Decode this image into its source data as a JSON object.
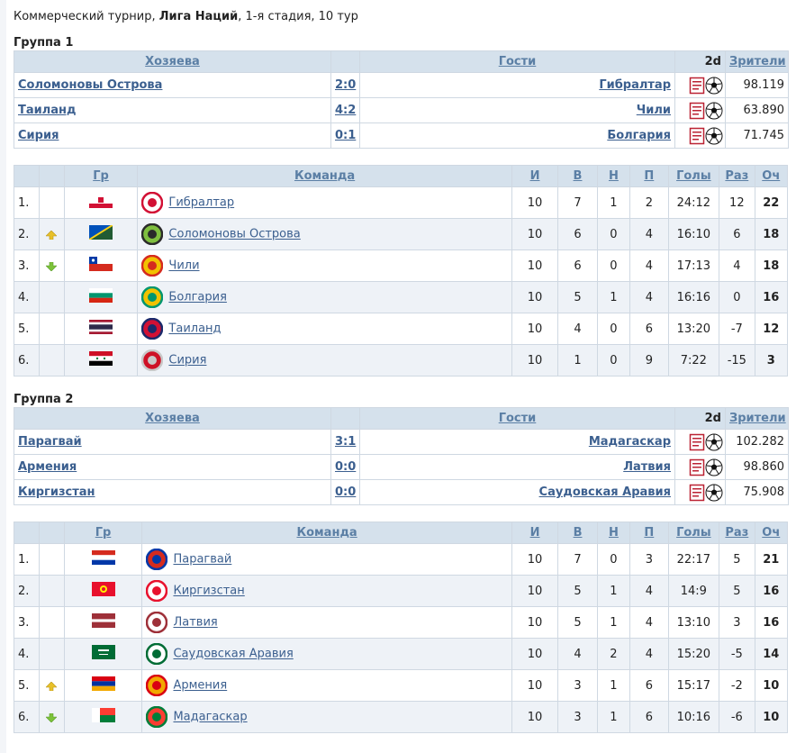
{
  "header": {
    "prefix": "Коммерческий турнир, ",
    "league": "Лига Наций",
    "suffix": ", 1-я стадия, 10 тур"
  },
  "colors": {
    "header_bg": "#d5e1ec",
    "link": "#3b5f8f",
    "row_alt": "#eef2f7",
    "up_arrow": "#e8c12a",
    "down_arrow": "#7cc23a"
  },
  "labels": {
    "hosts": "Хозяева",
    "guests": "Гости",
    "twod": "2d",
    "viewers": "Зрители",
    "gr": "Гр",
    "team": "Команда",
    "i": "И",
    "w": "В",
    "d": "Н",
    "l": "П",
    "goals": "Голы",
    "diff": "Раз",
    "pts": "Оч"
  },
  "groups": [
    {
      "title": "Группа 1",
      "matches": [
        {
          "home": "Соломоновы Острова",
          "score": "2:0",
          "away": "Гибралтар",
          "viewers": "98.119"
        },
        {
          "home": "Таиланд",
          "score": "4:2",
          "away": "Чили",
          "viewers": "63.890"
        },
        {
          "home": "Сирия",
          "score": "0:1",
          "away": "Болгария",
          "viewers": "71.745"
        }
      ],
      "standings": [
        {
          "pos": "1.",
          "trend": "",
          "flag": "gibraltar",
          "team": "Гибралтар",
          "i": "10",
          "w": "7",
          "d": "1",
          "l": "2",
          "goals": "24:12",
          "diff": "12",
          "pts": "22"
        },
        {
          "pos": "2.",
          "trend": "up",
          "flag": "solomon",
          "team": "Соломоновы Острова",
          "i": "10",
          "w": "6",
          "d": "0",
          "l": "4",
          "goals": "16:10",
          "diff": "6",
          "pts": "18"
        },
        {
          "pos": "3.",
          "trend": "down",
          "flag": "chile",
          "team": "Чили",
          "i": "10",
          "w": "6",
          "d": "0",
          "l": "4",
          "goals": "17:13",
          "diff": "4",
          "pts": "18"
        },
        {
          "pos": "4.",
          "trend": "",
          "flag": "bulgaria",
          "team": "Болгария",
          "i": "10",
          "w": "5",
          "d": "1",
          "l": "4",
          "goals": "16:16",
          "diff": "0",
          "pts": "16"
        },
        {
          "pos": "5.",
          "trend": "",
          "flag": "thailand",
          "team": "Таиланд",
          "i": "10",
          "w": "4",
          "d": "0",
          "l": "6",
          "goals": "13:20",
          "diff": "-7",
          "pts": "12"
        },
        {
          "pos": "6.",
          "trend": "",
          "flag": "syria",
          "team": "Сирия",
          "i": "10",
          "w": "1",
          "d": "0",
          "l": "9",
          "goals": "7:22",
          "diff": "-15",
          "pts": "3"
        }
      ]
    },
    {
      "title": "Группа 2",
      "matches": [
        {
          "home": "Парагвай",
          "score": "3:1",
          "away": "Мадагаскар",
          "viewers": "102.282"
        },
        {
          "home": "Армения",
          "score": "0:0",
          "away": "Латвия",
          "viewers": "98.860"
        },
        {
          "home": "Киргизстан",
          "score": "0:0",
          "away": "Саудовская Аравия",
          "viewers": "75.908"
        }
      ],
      "standings": [
        {
          "pos": "1.",
          "trend": "",
          "flag": "paraguay",
          "team": "Парагвай",
          "i": "10",
          "w": "7",
          "d": "0",
          "l": "3",
          "goals": "22:17",
          "diff": "5",
          "pts": "21"
        },
        {
          "pos": "2.",
          "trend": "",
          "flag": "kyrgyzstan",
          "team": "Киргизстан",
          "i": "10",
          "w": "5",
          "d": "1",
          "l": "4",
          "goals": "14:9",
          "diff": "5",
          "pts": "16"
        },
        {
          "pos": "3.",
          "trend": "",
          "flag": "latvia",
          "team": "Латвия",
          "i": "10",
          "w": "5",
          "d": "1",
          "l": "4",
          "goals": "13:10",
          "diff": "3",
          "pts": "16"
        },
        {
          "pos": "4.",
          "trend": "",
          "flag": "saudi",
          "team": "Саудовская Аравия",
          "i": "10",
          "w": "4",
          "d": "2",
          "l": "4",
          "goals": "15:20",
          "diff": "-5",
          "pts": "14"
        },
        {
          "pos": "5.",
          "trend": "up",
          "flag": "armenia",
          "team": "Армения",
          "i": "10",
          "w": "3",
          "d": "1",
          "l": "6",
          "goals": "15:17",
          "diff": "-2",
          "pts": "10"
        },
        {
          "pos": "6.",
          "trend": "down",
          "flag": "madagascar",
          "team": "Мадагаскар",
          "i": "10",
          "w": "3",
          "d": "1",
          "l": "6",
          "goals": "10:16",
          "diff": "-6",
          "pts": "10"
        }
      ]
    }
  ]
}
